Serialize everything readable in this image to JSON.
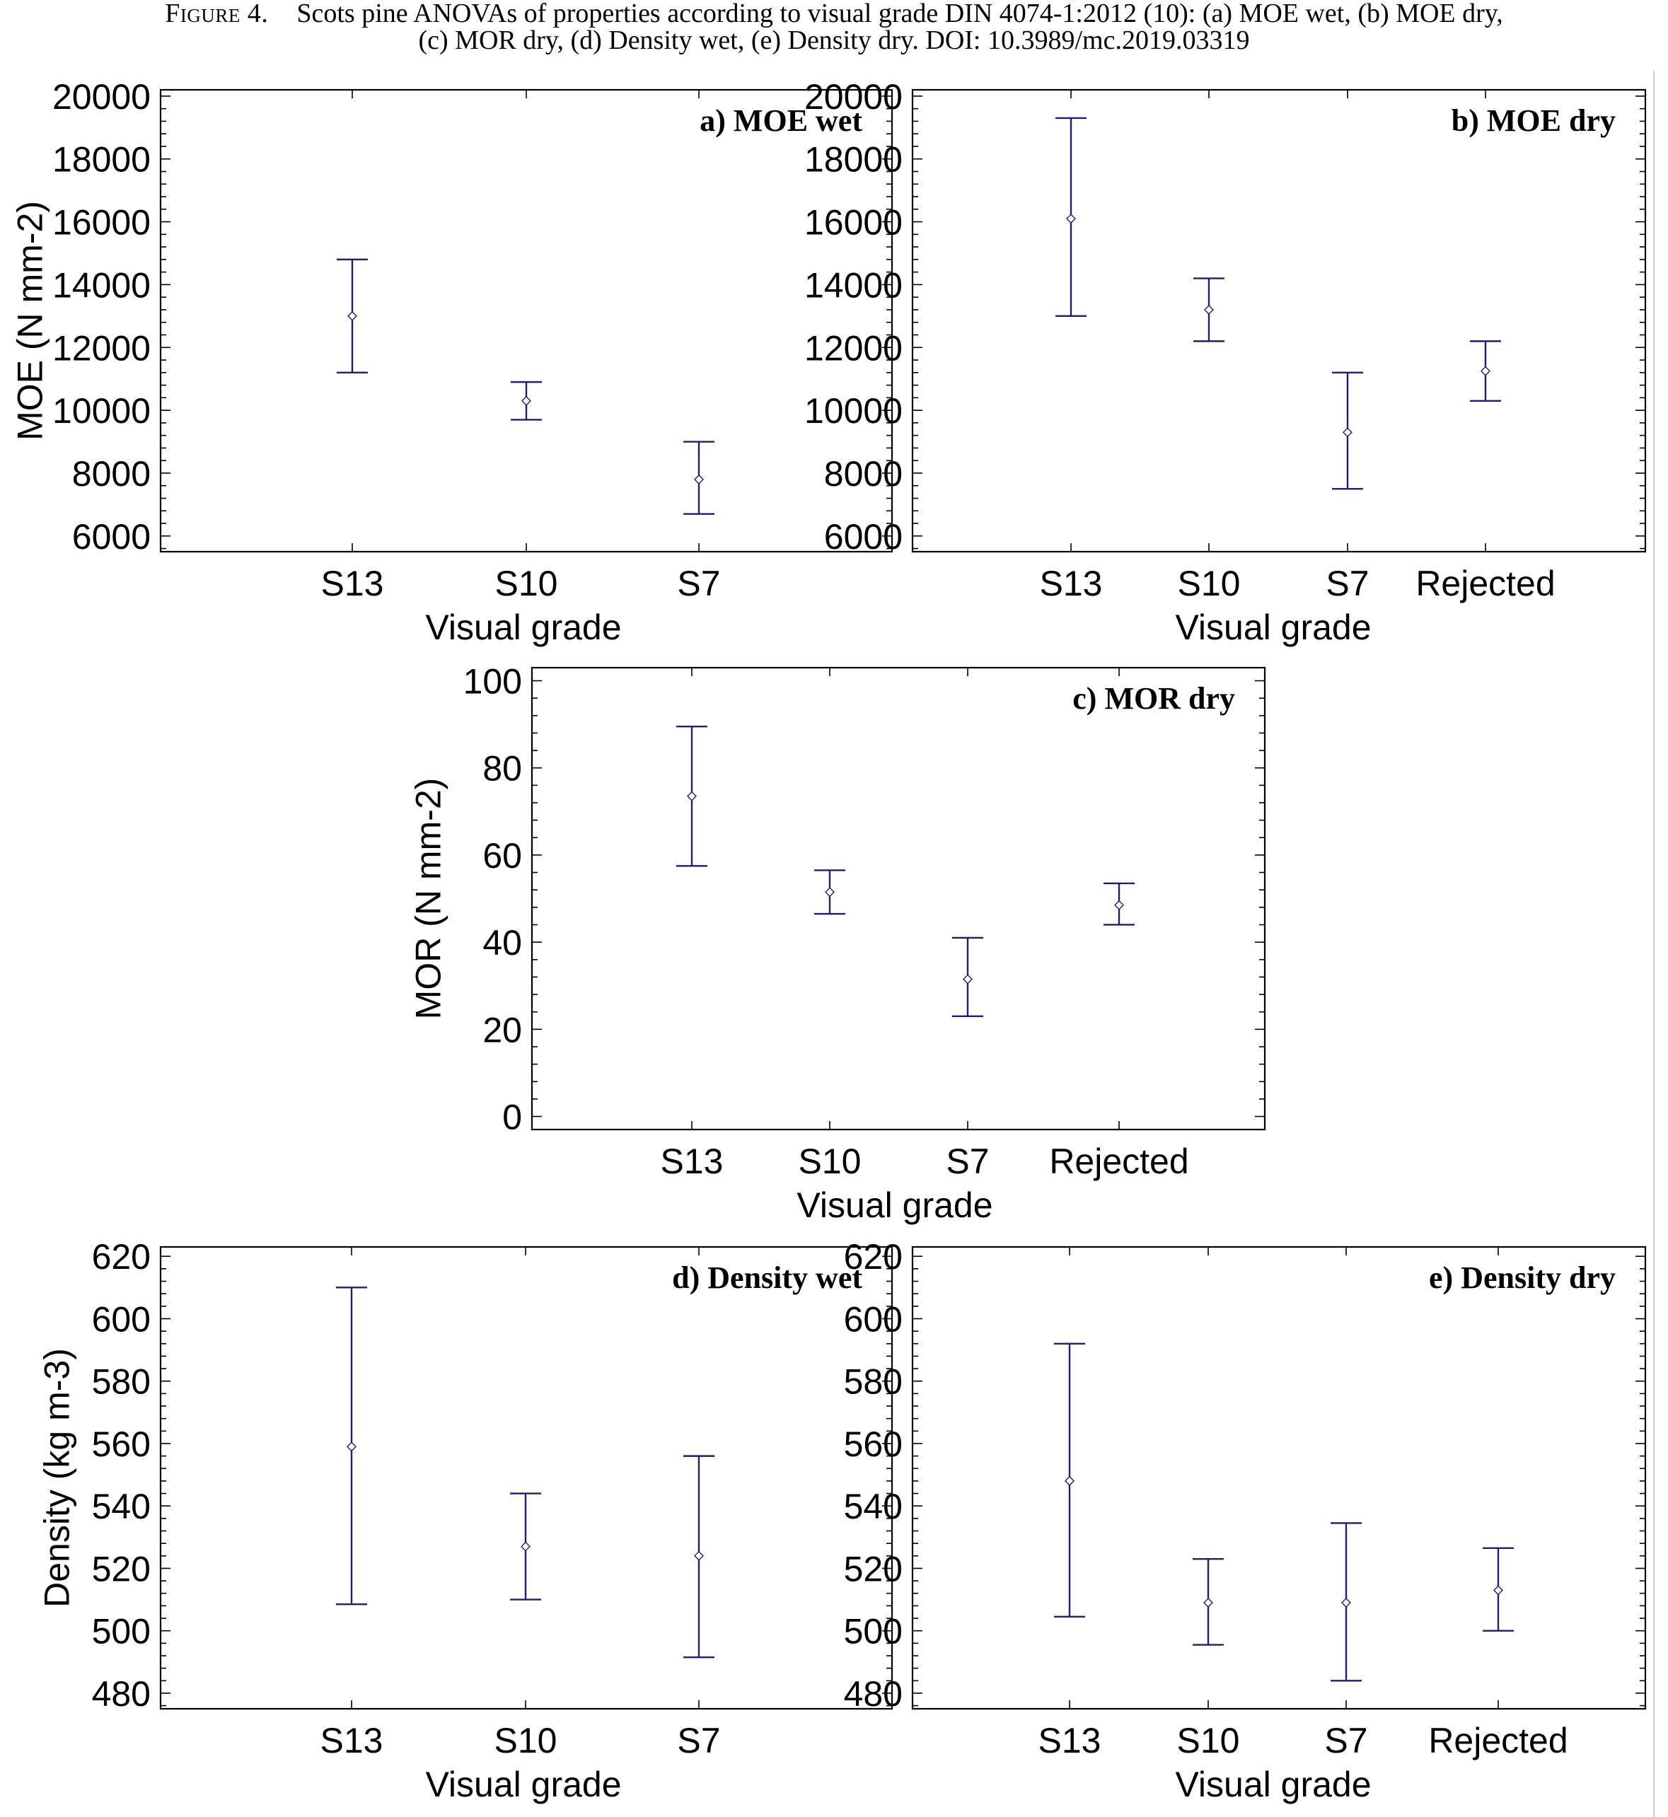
{
  "caption": {
    "lead": "Figure 4.",
    "line1": "Scots pine ANOVAs of properties according to visual grade DIN 4074-1:2012 (10): (a) MOE wet, (b) MOE dry,",
    "line2": "(c) MOR dry, (d) Density wet, (e) Density dry. DOI: 10.3989/mc.2019.03319"
  },
  "colors": {
    "errorbar": "#1f1f6e",
    "frame": "#000000"
  },
  "chart_data": [
    {
      "id": "a",
      "type": "scatter",
      "title": "a) MOE wet",
      "xlabel": "Visual grade",
      "ylabel": "MOE (N mm-2)",
      "categories": [
        "S13",
        "S10",
        "S7"
      ],
      "ylim": [
        5500,
        20200
      ],
      "yticks": [
        6000,
        8000,
        10000,
        12000,
        14000,
        16000,
        18000,
        20000
      ],
      "mean": [
        13000,
        10300,
        7800
      ],
      "lower": [
        11200,
        9700,
        6700
      ],
      "upper": [
        14800,
        10900,
        9000
      ]
    },
    {
      "id": "b",
      "type": "scatter",
      "title": "b) MOE dry",
      "xlabel": "Visual grade",
      "ylabel": "",
      "categories": [
        "S13",
        "S10",
        "S7",
        "Rejected"
      ],
      "ylim": [
        5500,
        20200
      ],
      "yticks": [
        6000,
        8000,
        10000,
        12000,
        14000,
        16000,
        18000,
        20000
      ],
      "mean": [
        16100,
        13200,
        9300,
        11250
      ],
      "lower": [
        13000,
        12200,
        7500,
        10300
      ],
      "upper": [
        19300,
        14200,
        11200,
        12200
      ]
    },
    {
      "id": "c",
      "type": "scatter",
      "title": "c) MOR dry",
      "xlabel": "Visual grade",
      "ylabel": "MOR (N mm-2)",
      "categories": [
        "S13",
        "S10",
        "S7",
        "Rejected"
      ],
      "ylim": [
        -3,
        103
      ],
      "yticks": [
        0,
        20,
        40,
        60,
        80,
        100
      ],
      "mean": [
        73.5,
        51.5,
        31.5,
        48.5
      ],
      "lower": [
        57.5,
        46.5,
        23,
        44
      ],
      "upper": [
        89.5,
        56.5,
        41,
        53.5
      ]
    },
    {
      "id": "d",
      "type": "scatter",
      "title": "d) Density wet",
      "xlabel": "Visual grade",
      "ylabel": "Density (kg m-3)",
      "categories": [
        "S13",
        "S10",
        "S7"
      ],
      "ylim": [
        475,
        623
      ],
      "yticks": [
        480,
        500,
        520,
        540,
        560,
        580,
        600,
        620
      ],
      "mean": [
        559,
        527,
        524
      ],
      "lower": [
        508.5,
        510,
        491.5
      ],
      "upper": [
        610,
        544,
        556
      ]
    },
    {
      "id": "e",
      "type": "scatter",
      "title": "e) Density dry",
      "xlabel": "Visual grade",
      "ylabel": "",
      "categories": [
        "S13",
        "S10",
        "S7",
        "Rejected"
      ],
      "ylim": [
        475,
        623
      ],
      "yticks": [
        480,
        500,
        520,
        540,
        560,
        580,
        600,
        620
      ],
      "mean": [
        548,
        509,
        509,
        513
      ],
      "lower": [
        504.5,
        495.5,
        484,
        500
      ],
      "upper": [
        592,
        523,
        534.5,
        526.5
      ]
    }
  ]
}
